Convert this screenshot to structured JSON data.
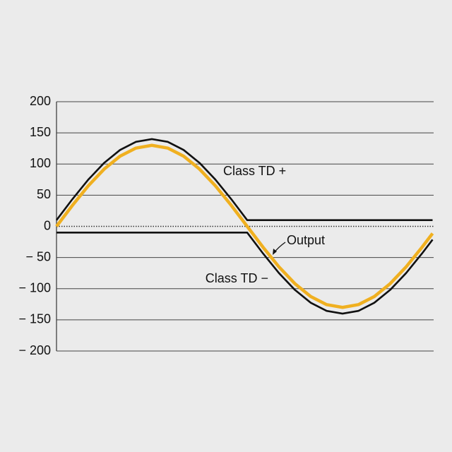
{
  "chart_data": {
    "type": "line",
    "x": [
      0,
      15,
      30,
      45,
      60,
      75,
      90,
      105,
      120,
      135,
      150,
      165,
      180,
      195,
      210,
      225,
      240,
      255,
      270,
      285,
      300,
      315,
      330,
      345,
      355
    ],
    "xlim": [
      0,
      356
    ],
    "ylim": [
      -200,
      200
    ],
    "yticks": [
      200,
      150,
      100,
      50,
      0,
      {
        "value": -50,
        "label": "− 50"
      },
      {
        "value": -100,
        "label": "− 100"
      },
      {
        "value": -150,
        "label": "− 150"
      },
      {
        "value": -200,
        "label": "− 200"
      }
    ],
    "grid": true,
    "series": [
      {
        "color": "#111111",
        "values": [
          10,
          43.6,
          75,
          101.9,
          122.6,
          135.6,
          140,
          135.6,
          122.6,
          101.9,
          75,
          43.6,
          10,
          10,
          10,
          10,
          10,
          10,
          10,
          10,
          10,
          10,
          10,
          10,
          10
        ]
      },
      {
        "color": "#111111",
        "values": [
          -10,
          -10,
          -10,
          -10,
          -10,
          -10,
          -10,
          -10,
          -10,
          -10,
          -10,
          -10,
          -10,
          -43.6,
          -75,
          -101.9,
          -122.6,
          -135.6,
          -140,
          -135.6,
          -122.6,
          -101.9,
          -75,
          -43.6,
          -21.3
        ]
      },
      {
        "color": "#f0b020",
        "values": [
          0,
          33.6,
          65,
          91.9,
          112.6,
          125.6,
          130,
          125.6,
          112.6,
          91.9,
          65,
          33.6,
          0,
          -33.6,
          -65,
          -91.9,
          -112.6,
          -125.6,
          -130,
          -125.6,
          -112.6,
          -91.9,
          -65,
          -33.6,
          -11.3
        ]
      }
    ],
    "annotations": [
      "Class TD +",
      "Output",
      "Class TD −"
    ]
  }
}
